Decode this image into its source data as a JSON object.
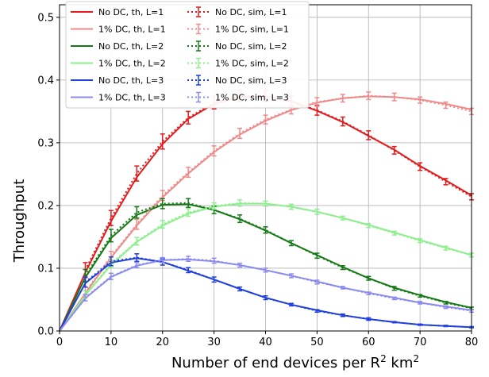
{
  "chart_data": {
    "type": "line",
    "title": "",
    "xlabel": "Number of end devices per R",
    "xlabel_sup": "2",
    "xlabel_suffix": " km",
    "xlabel_sup2": "2",
    "ylabel": "Throughput",
    "xlim": [
      0,
      80
    ],
    "ylim": [
      0,
      0.52
    ],
    "xticks": [
      0,
      10,
      20,
      30,
      40,
      50,
      60,
      70,
      80
    ],
    "yticks": [
      0.0,
      0.1,
      0.2,
      0.3,
      0.4,
      0.5
    ],
    "ytick_labels": [
      "0.0",
      "0.1",
      "0.2",
      "0.3",
      "0.4",
      "0.5"
    ],
    "grid": true,
    "legend_placement": "top-left",
    "legend_columns": 2,
    "theory_x": [
      0,
      5,
      10,
      15,
      20,
      25,
      30,
      35,
      40,
      45,
      50,
      55,
      60,
      65,
      70,
      75,
      80
    ],
    "sim_x": [
      5,
      10,
      15,
      20,
      25,
      30,
      35,
      40,
      45,
      50,
      55,
      60,
      65,
      70,
      75,
      80
    ],
    "series": [
      {
        "name": "No DC, th, L=1",
        "kind": "theory",
        "color": "#e41a1c",
        "values": [
          0,
          0.093,
          0.175,
          0.245,
          0.298,
          0.338,
          0.362,
          0.373,
          0.374,
          0.366,
          0.351,
          0.333,
          0.311,
          0.289,
          0.263,
          0.24,
          0.216
        ]
      },
      {
        "name": "1% DC, th, L=1",
        "kind": "theory",
        "color": "#f08a8a",
        "values": [
          0,
          0.06,
          0.117,
          0.168,
          0.213,
          0.251,
          0.285,
          0.313,
          0.335,
          0.352,
          0.364,
          0.371,
          0.374,
          0.373,
          0.369,
          0.362,
          0.353
        ]
      },
      {
        "name": "No DC, th, L=2",
        "kind": "theory",
        "color": "#157a15",
        "values": [
          0,
          0.085,
          0.148,
          0.185,
          0.201,
          0.202,
          0.193,
          0.178,
          0.16,
          0.14,
          0.121,
          0.102,
          0.084,
          0.069,
          0.057,
          0.046,
          0.037
        ]
      },
      {
        "name": "1% DC, th, L=2",
        "kind": "theory",
        "color": "#8bef8b",
        "values": [
          0,
          0.057,
          0.105,
          0.142,
          0.168,
          0.187,
          0.198,
          0.203,
          0.203,
          0.198,
          0.19,
          0.18,
          0.169,
          0.157,
          0.145,
          0.133,
          0.121
        ]
      },
      {
        "name": "No DC, th, L=3",
        "kind": "theory",
        "color": "#1f3fdd",
        "values": [
          0,
          0.076,
          0.109,
          0.116,
          0.11,
          0.096,
          0.082,
          0.067,
          0.053,
          0.042,
          0.033,
          0.025,
          0.019,
          0.014,
          0.01,
          0.008,
          0.006
        ]
      },
      {
        "name": "1% DC, th, L=3",
        "kind": "theory",
        "color": "#8b8bef",
        "values": [
          0,
          0.052,
          0.086,
          0.104,
          0.113,
          0.114,
          0.111,
          0.105,
          0.097,
          0.088,
          0.079,
          0.069,
          0.061,
          0.053,
          0.045,
          0.039,
          0.033
        ]
      },
      {
        "name": "No DC, sim, L=1",
        "kind": "sim",
        "color": "#e41a1c",
        "values": [
          0.097,
          0.18,
          0.251,
          0.302,
          0.34,
          0.364,
          0.375,
          0.375,
          0.366,
          0.352,
          0.334,
          0.312,
          0.288,
          0.262,
          0.238,
          0.214
        ],
        "errors": [
          0.012,
          0.012,
          0.012,
          0.012,
          0.01,
          0.01,
          0.009,
          0.009,
          0.008,
          0.008,
          0.007,
          0.007,
          0.006,
          0.006,
          0.005,
          0.005
        ]
      },
      {
        "name": "1% DC, sim, L=1",
        "kind": "sim",
        "color": "#f08a8a",
        "values": [
          0.062,
          0.119,
          0.17,
          0.216,
          0.253,
          0.287,
          0.315,
          0.337,
          0.353,
          0.365,
          0.371,
          0.375,
          0.373,
          0.368,
          0.36,
          0.35
        ],
        "errors": [
          0.008,
          0.008,
          0.008,
          0.008,
          0.008,
          0.008,
          0.008,
          0.007,
          0.007,
          0.007,
          0.006,
          0.006,
          0.006,
          0.005,
          0.005,
          0.005
        ]
      },
      {
        "name": "No DC, sim, L=2",
        "kind": "sim",
        "color": "#157a15",
        "values": [
          0.088,
          0.152,
          0.189,
          0.203,
          0.204,
          0.193,
          0.179,
          0.161,
          0.14,
          0.12,
          0.101,
          0.084,
          0.068,
          0.056,
          0.045,
          0.036
        ],
        "errors": [
          0.01,
          0.01,
          0.009,
          0.008,
          0.007,
          0.006,
          0.006,
          0.005,
          0.004,
          0.004,
          0.003,
          0.003,
          0.003,
          0.002,
          0.002,
          0.002
        ]
      },
      {
        "name": "1% DC, sim, L=2",
        "kind": "sim",
        "color": "#8bef8b",
        "values": [
          0.058,
          0.107,
          0.143,
          0.17,
          0.189,
          0.199,
          0.204,
          0.203,
          0.198,
          0.19,
          0.18,
          0.168,
          0.156,
          0.144,
          0.132,
          0.121
        ],
        "errors": [
          0.006,
          0.006,
          0.006,
          0.006,
          0.006,
          0.005,
          0.005,
          0.004,
          0.004,
          0.004,
          0.003,
          0.003,
          0.003,
          0.003,
          0.003,
          0.003
        ]
      },
      {
        "name": "No DC, sim, L=3",
        "kind": "sim",
        "color": "#1f3fdd",
        "values": [
          0.078,
          0.111,
          0.117,
          0.11,
          0.097,
          0.082,
          0.067,
          0.053,
          0.042,
          0.032,
          0.025,
          0.019,
          0.014,
          0.01,
          0.008,
          0.006
        ],
        "errors": [
          0.008,
          0.007,
          0.006,
          0.005,
          0.004,
          0.004,
          0.003,
          0.003,
          0.002,
          0.002,
          0.002,
          0.002,
          0.001,
          0.001,
          0.001,
          0.001
        ]
      },
      {
        "name": "1% DC, sim, L=3",
        "kind": "sim",
        "color": "#8b8bef",
        "values": [
          0.053,
          0.087,
          0.105,
          0.113,
          0.115,
          0.112,
          0.105,
          0.097,
          0.088,
          0.078,
          0.069,
          0.06,
          0.052,
          0.045,
          0.038,
          0.032
        ],
        "errors": [
          0.005,
          0.005,
          0.004,
          0.004,
          0.004,
          0.004,
          0.003,
          0.003,
          0.003,
          0.003,
          0.002,
          0.002,
          0.002,
          0.002,
          0.002,
          0.002
        ]
      }
    ]
  }
}
